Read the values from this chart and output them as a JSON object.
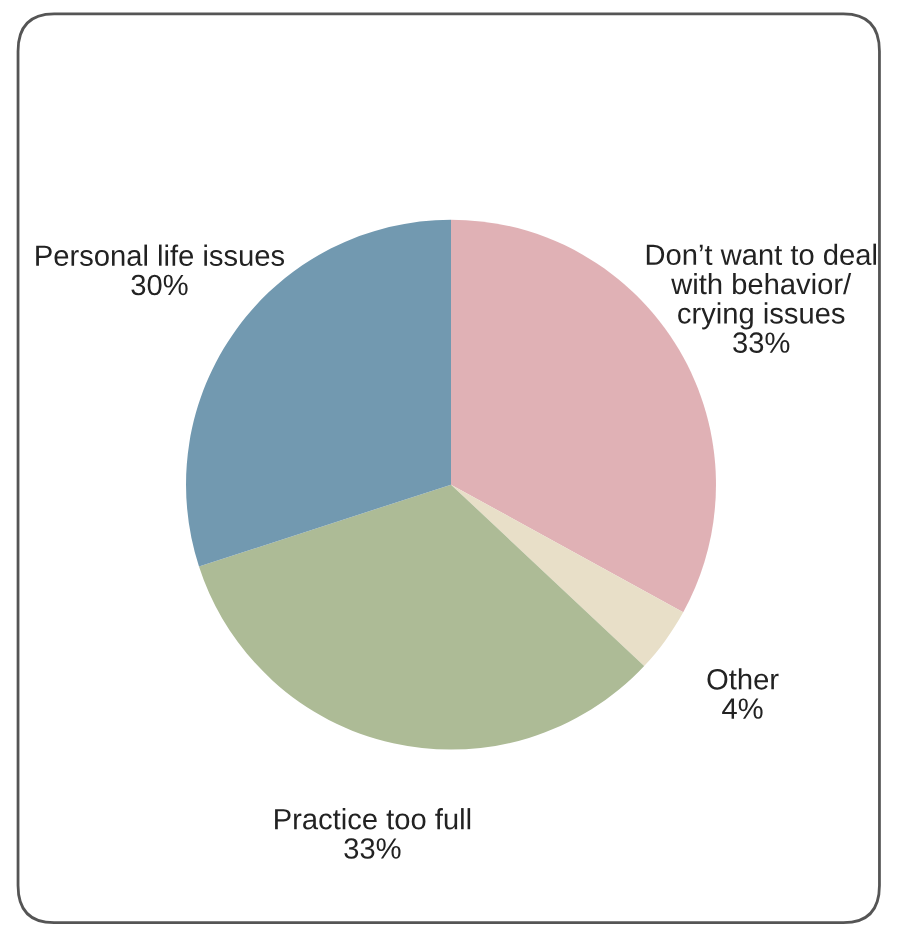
{
  "chart_data": {
    "type": "pie",
    "categories": [
      "Don’t want to deal\nwith behavior/\ncrying issues",
      "Other",
      "Practice too full",
      "Personal life issues"
    ],
    "values": [
      33,
      4,
      33,
      30
    ],
    "value_labels": [
      "33%",
      "4%",
      "33%",
      "30%"
    ],
    "colors": [
      "#e0b1b5",
      "#e8dfc8",
      "#adbb96",
      "#7299b0"
    ]
  }
}
